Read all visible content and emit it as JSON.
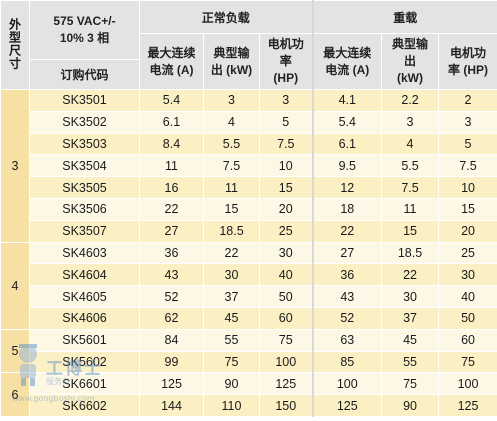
{
  "header": {
    "side_label": "外型尺寸",
    "voltage": "575 VAC+/- 10% 3 相",
    "order_code": "订购代码",
    "normal_duty": "正常负载",
    "heavy_duty": "重载",
    "col_current": "最大连续电流 (A)",
    "col_output": "典型输出 (kW)",
    "col_motor": "电机功率 (HP)"
  },
  "frames": [
    "3",
    "4",
    "5",
    "6"
  ],
  "rows": [
    {
      "code": "SK3501",
      "n_a": "5.4",
      "n_kw": "3",
      "n_hp": "3",
      "h_a": "4.1",
      "h_kw": "2.2",
      "h_hp": "2"
    },
    {
      "code": "SK3502",
      "n_a": "6.1",
      "n_kw": "4",
      "n_hp": "5",
      "h_a": "5.4",
      "h_kw": "3",
      "h_hp": "3"
    },
    {
      "code": "SK3503",
      "n_a": "8.4",
      "n_kw": "5.5",
      "n_hp": "7.5",
      "h_a": "6.1",
      "h_kw": "4",
      "h_hp": "5"
    },
    {
      "code": "SK3504",
      "n_a": "11",
      "n_kw": "7.5",
      "n_hp": "10",
      "h_a": "9.5",
      "h_kw": "5.5",
      "h_hp": "7.5"
    },
    {
      "code": "SK3505",
      "n_a": "16",
      "n_kw": "11",
      "n_hp": "15",
      "h_a": "12",
      "h_kw": "7.5",
      "h_hp": "10"
    },
    {
      "code": "SK3506",
      "n_a": "22",
      "n_kw": "15",
      "n_hp": "20",
      "h_a": "18",
      "h_kw": "11",
      "h_hp": "15"
    },
    {
      "code": "SK3507",
      "n_a": "27",
      "n_kw": "18.5",
      "n_hp": "25",
      "h_a": "22",
      "h_kw": "15",
      "h_hp": "20"
    },
    {
      "code": "SK4603",
      "n_a": "36",
      "n_kw": "22",
      "n_hp": "30",
      "h_a": "27",
      "h_kw": "18.5",
      "h_hp": "25"
    },
    {
      "code": "SK4604",
      "n_a": "43",
      "n_kw": "30",
      "n_hp": "40",
      "h_a": "36",
      "h_kw": "22",
      "h_hp": "30"
    },
    {
      "code": "SK4605",
      "n_a": "52",
      "n_kw": "37",
      "n_hp": "50",
      "h_a": "43",
      "h_kw": "30",
      "h_hp": "40"
    },
    {
      "code": "SK4606",
      "n_a": "62",
      "n_kw": "45",
      "n_hp": "60",
      "h_a": "52",
      "h_kw": "37",
      "h_hp": "50"
    },
    {
      "code": "SK5601",
      "n_a": "84",
      "n_kw": "55",
      "n_hp": "75",
      "h_a": "63",
      "h_kw": "45",
      "h_hp": "60"
    },
    {
      "code": "SK5602",
      "n_a": "99",
      "n_kw": "75",
      "n_hp": "100",
      "h_a": "85",
      "h_kw": "55",
      "h_hp": "75"
    },
    {
      "code": "SK6601",
      "n_a": "125",
      "n_kw": "90",
      "n_hp": "125",
      "h_a": "100",
      "h_kw": "75",
      "h_hp": "100"
    },
    {
      "code": "SK6602",
      "n_a": "144",
      "n_kw": "110",
      "n_hp": "150",
      "h_a": "125",
      "h_kw": "90",
      "h_hp": "125"
    }
  ],
  "watermark": {
    "brand": "工博士",
    "sub": "服务商",
    "url": "www.gongboshi.com"
  },
  "colors": {
    "header_bg": "#e3e3e3",
    "frame_bg": "#f6e0a4",
    "row_light": "#fdf8e6",
    "row_dark": "#fbefc4"
  }
}
